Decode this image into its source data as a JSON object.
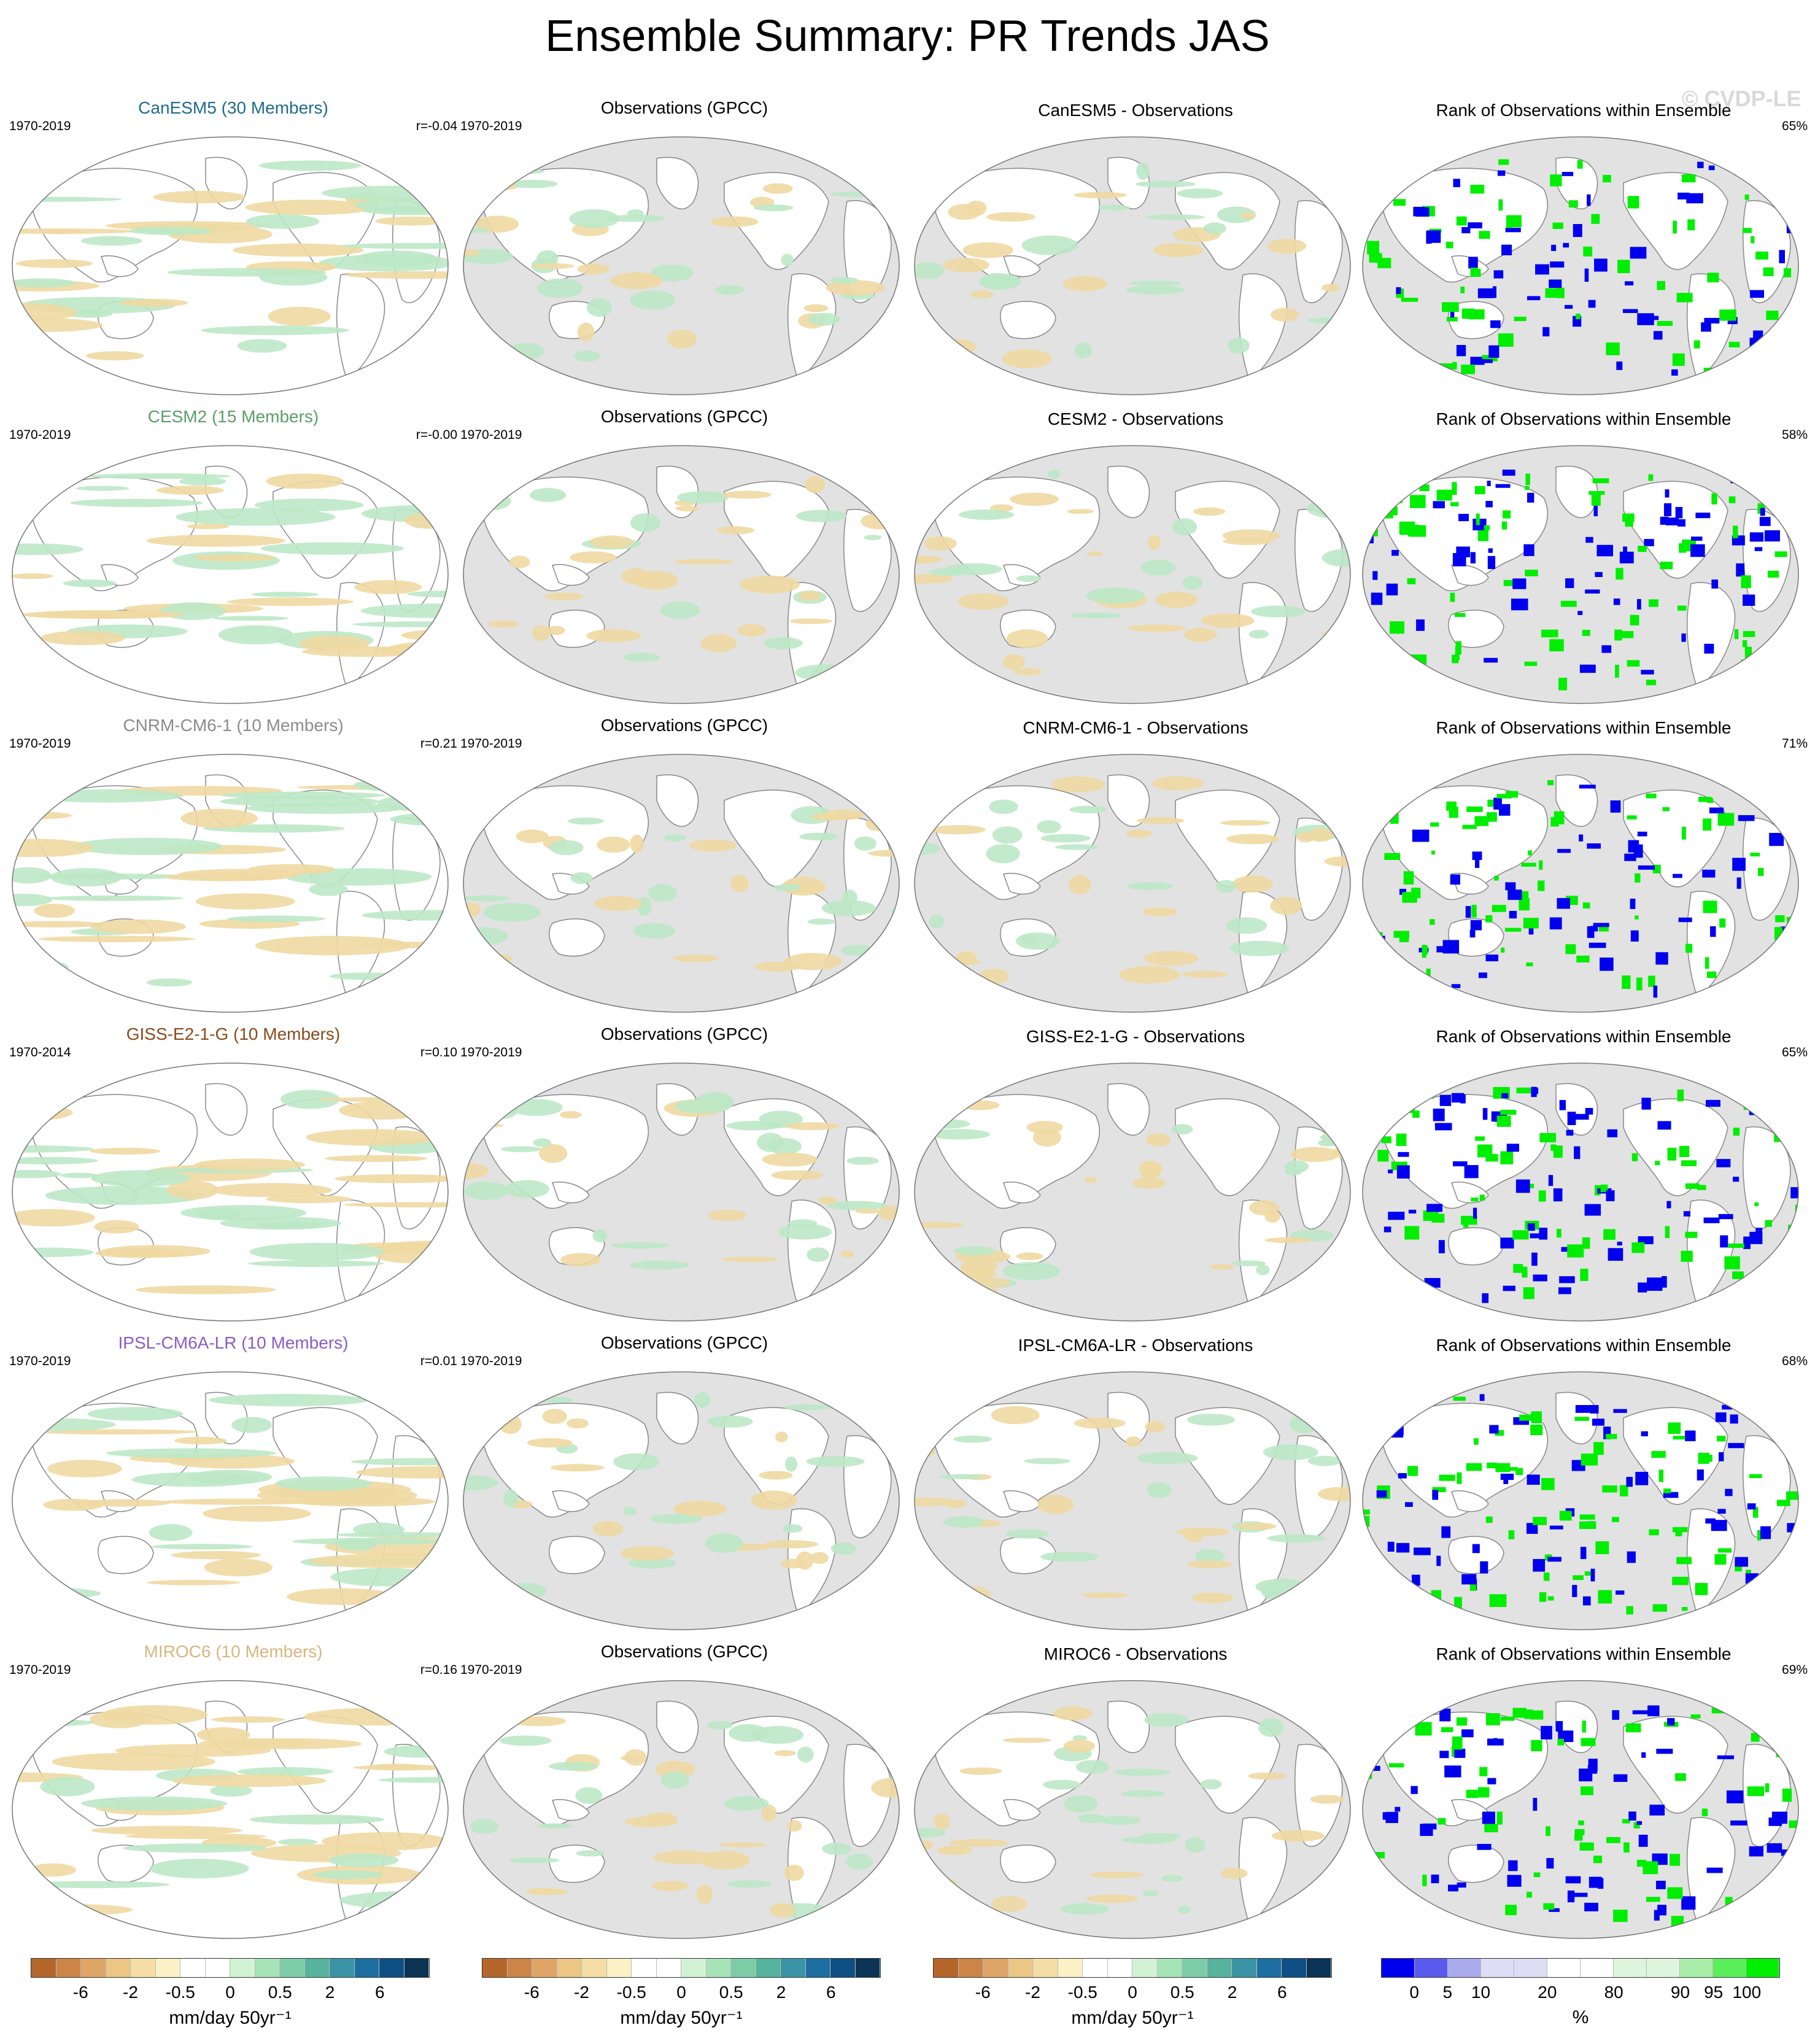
{
  "title": "Ensemble Summary: PR Trends JAS",
  "watermark": "© CVDP-LE",
  "colors": {
    "ocean_gray": "#e2e2e2",
    "land_white": "#ffffff",
    "wet": "#bde8c6",
    "dry": "#f0d9a2",
    "rank_low": "#0000ee",
    "rank_high": "#00ee00"
  },
  "rows": [
    {
      "model": {
        "title": "CanESM5 (30 Members)",
        "color": "#1e6b8e",
        "period": "1970-2019",
        "r": "r=-0.04"
      },
      "obs": {
        "title": "Observations (GPCC)",
        "period": "1970-2019"
      },
      "diff": {
        "title": "CanESM5 - Observations"
      },
      "rank": {
        "title": "Rank of Observations within Ensemble",
        "pct": "65%"
      }
    },
    {
      "model": {
        "title": "CESM2 (15 Members)",
        "color": "#5a9e6a",
        "period": "1970-2019",
        "r": "r=-0.00"
      },
      "obs": {
        "title": "Observations (GPCC)",
        "period": "1970-2019"
      },
      "diff": {
        "title": "CESM2 - Observations"
      },
      "rank": {
        "title": "Rank of Observations within Ensemble",
        "pct": "58%"
      }
    },
    {
      "model": {
        "title": "CNRM-CM6-1 (10 Members)",
        "color": "#8c8c8c",
        "period": "1970-2019",
        "r": "r=0.21"
      },
      "obs": {
        "title": "Observations (GPCC)",
        "period": "1970-2019"
      },
      "diff": {
        "title": "CNRM-CM6-1 - Observations"
      },
      "rank": {
        "title": "Rank of Observations within Ensemble",
        "pct": "71%"
      }
    },
    {
      "model": {
        "title": "GISS-E2-1-G (10 Members)",
        "color": "#8b4a1c",
        "period": "1970-2014",
        "r": "r=0.10"
      },
      "obs": {
        "title": "Observations (GPCC)",
        "period": "1970-2019"
      },
      "diff": {
        "title": "GISS-E2-1-G - Observations"
      },
      "rank": {
        "title": "Rank of Observations within Ensemble",
        "pct": "65%"
      }
    },
    {
      "model": {
        "title": "IPSL-CM6A-LR (10 Members)",
        "color": "#8a5cc8",
        "period": "1970-2019",
        "r": "r=0.01"
      },
      "obs": {
        "title": "Observations (GPCC)",
        "period": "1970-2019"
      },
      "diff": {
        "title": "IPSL-CM6A-LR - Observations"
      },
      "rank": {
        "title": "Rank of Observations within Ensemble",
        "pct": "68%"
      }
    },
    {
      "model": {
        "title": "MIROC6 (10 Members)",
        "color": "#d8b67e",
        "period": "1970-2019",
        "r": "r=0.16"
      },
      "obs": {
        "title": "Observations (GPCC)",
        "period": "1970-2019"
      },
      "diff": {
        "title": "MIROC6 - Observations"
      },
      "rank": {
        "title": "Rank of Observations within Ensemble",
        "pct": "69%"
      }
    }
  ],
  "colorbars": {
    "trend": {
      "colors": [
        "#b5662a",
        "#cc8547",
        "#dfa567",
        "#ebc685",
        "#f4dea5",
        "#fbf1c6",
        "#ffffff",
        "#ffffff",
        "#d3f2d3",
        "#a6e3b7",
        "#7dcca8",
        "#56b39e",
        "#3b94a5",
        "#1c6fa0",
        "#0f4f84",
        "#0b3457"
      ],
      "tick_labels": [
        "-6",
        "-2",
        "-0.5",
        "0",
        "0.5",
        "2",
        "6"
      ],
      "unit": "mm/day 50yr⁻¹"
    },
    "rank": {
      "colors": [
        "#0000ee",
        "#5a5aee",
        "#aaaaee",
        "#ddddf5",
        "#ddddf5",
        "#ffffff",
        "#ffffff",
        "#ddf5dd",
        "#ddf5dd",
        "#aaeeaa",
        "#5aee5a",
        "#00ee00"
      ],
      "tick_labels": [
        "0",
        "5",
        "10",
        "20",
        "80",
        "90",
        "95",
        "100"
      ],
      "unit": "%"
    }
  }
}
